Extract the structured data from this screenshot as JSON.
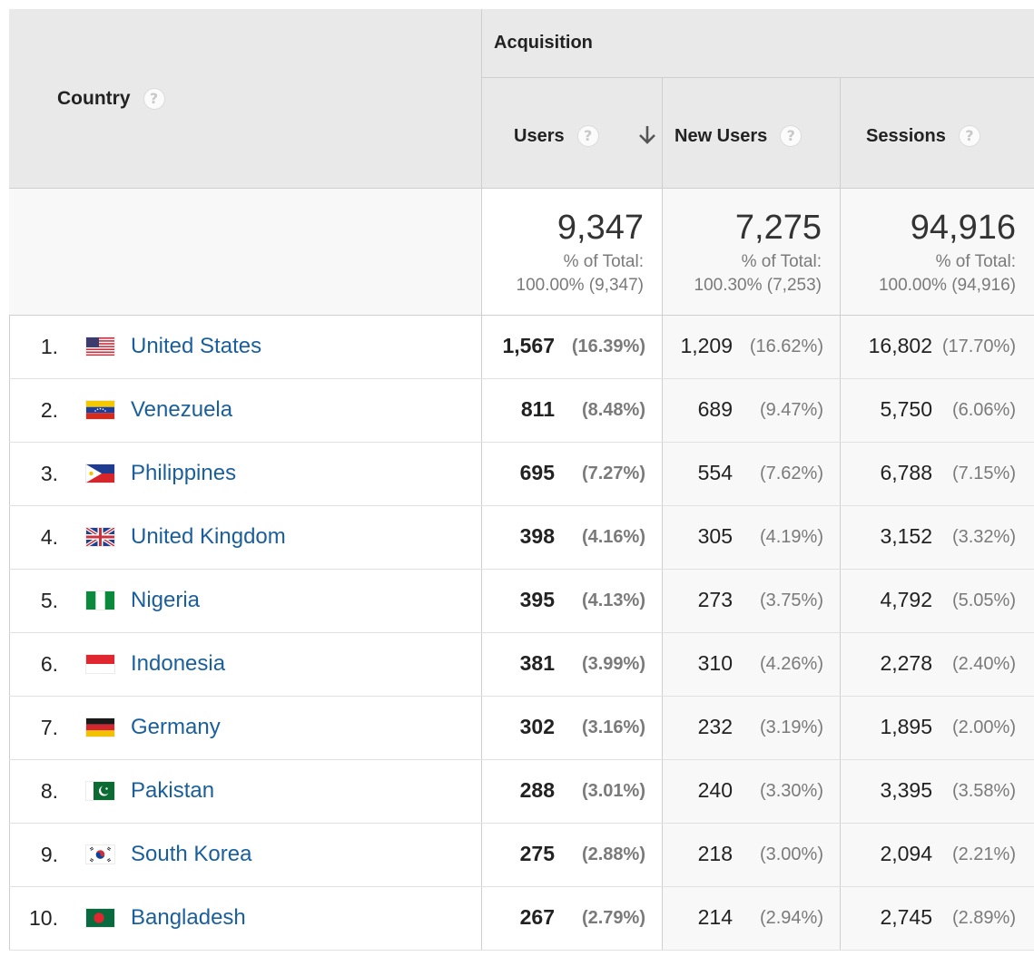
{
  "header": {
    "country_label": "Country",
    "group_label": "Acquisition",
    "users_label": "Users",
    "new_users_label": "New Users",
    "sessions_label": "Sessions",
    "help_glyph": "?"
  },
  "totals": {
    "users": {
      "value": "9,347",
      "pct_label": "% of Total:",
      "pct": "100.00% (9,347)"
    },
    "new_users": {
      "value": "7,275",
      "pct_label": "% of Total:",
      "pct": "100.30% (7,253)"
    },
    "sessions": {
      "value": "94,916",
      "pct_label": "% of Total:",
      "pct": "100.00% (94,916)"
    }
  },
  "rows": [
    {
      "rank": "1.",
      "country": "United States",
      "flag": "us-flag-icon",
      "users": "1,567",
      "users_pct": "(16.39%)",
      "new_users": "1,209",
      "new_users_pct": "(16.62%)",
      "sessions": "16,802",
      "sessions_pct": "(17.70%)"
    },
    {
      "rank": "2.",
      "country": "Venezuela",
      "flag": "venezuela-flag-icon",
      "users": "811",
      "users_pct": "(8.48%)",
      "new_users": "689",
      "new_users_pct": "(9.47%)",
      "sessions": "5,750",
      "sessions_pct": "(6.06%)"
    },
    {
      "rank": "3.",
      "country": "Philippines",
      "flag": "philippines-flag-icon",
      "users": "695",
      "users_pct": "(7.27%)",
      "new_users": "554",
      "new_users_pct": "(7.62%)",
      "sessions": "6,788",
      "sessions_pct": "(7.15%)"
    },
    {
      "rank": "4.",
      "country": "United Kingdom",
      "flag": "uk-flag-icon",
      "users": "398",
      "users_pct": "(4.16%)",
      "new_users": "305",
      "new_users_pct": "(4.19%)",
      "sessions": "3,152",
      "sessions_pct": "(3.32%)"
    },
    {
      "rank": "5.",
      "country": "Nigeria",
      "flag": "nigeria-flag-icon",
      "users": "395",
      "users_pct": "(4.13%)",
      "new_users": "273",
      "new_users_pct": "(3.75%)",
      "sessions": "4,792",
      "sessions_pct": "(5.05%)"
    },
    {
      "rank": "6.",
      "country": "Indonesia",
      "flag": "indonesia-flag-icon",
      "users": "381",
      "users_pct": "(3.99%)",
      "new_users": "310",
      "new_users_pct": "(4.26%)",
      "sessions": "2,278",
      "sessions_pct": "(2.40%)"
    },
    {
      "rank": "7.",
      "country": "Germany",
      "flag": "germany-flag-icon",
      "users": "302",
      "users_pct": "(3.16%)",
      "new_users": "232",
      "new_users_pct": "(3.19%)",
      "sessions": "1,895",
      "sessions_pct": "(2.00%)"
    },
    {
      "rank": "8.",
      "country": "Pakistan",
      "flag": "pakistan-flag-icon",
      "users": "288",
      "users_pct": "(3.01%)",
      "new_users": "240",
      "new_users_pct": "(3.30%)",
      "sessions": "3,395",
      "sessions_pct": "(3.58%)"
    },
    {
      "rank": "9.",
      "country": "South Korea",
      "flag": "south-korea-flag-icon",
      "users": "275",
      "users_pct": "(2.88%)",
      "new_users": "218",
      "new_users_pct": "(3.00%)",
      "sessions": "2,094",
      "sessions_pct": "(2.21%)"
    },
    {
      "rank": "10.",
      "country": "Bangladesh",
      "flag": "bangladesh-flag-icon",
      "users": "267",
      "users_pct": "(2.79%)",
      "new_users": "214",
      "new_users_pct": "(2.94%)",
      "sessions": "2,745",
      "sessions_pct": "(2.89%)"
    }
  ],
  "colors": {
    "link": "#1a5f9c",
    "header_bg": "#e9e9e9"
  },
  "sort": {
    "column": "Users",
    "direction": "descending",
    "icon": "arrow-down-icon"
  }
}
